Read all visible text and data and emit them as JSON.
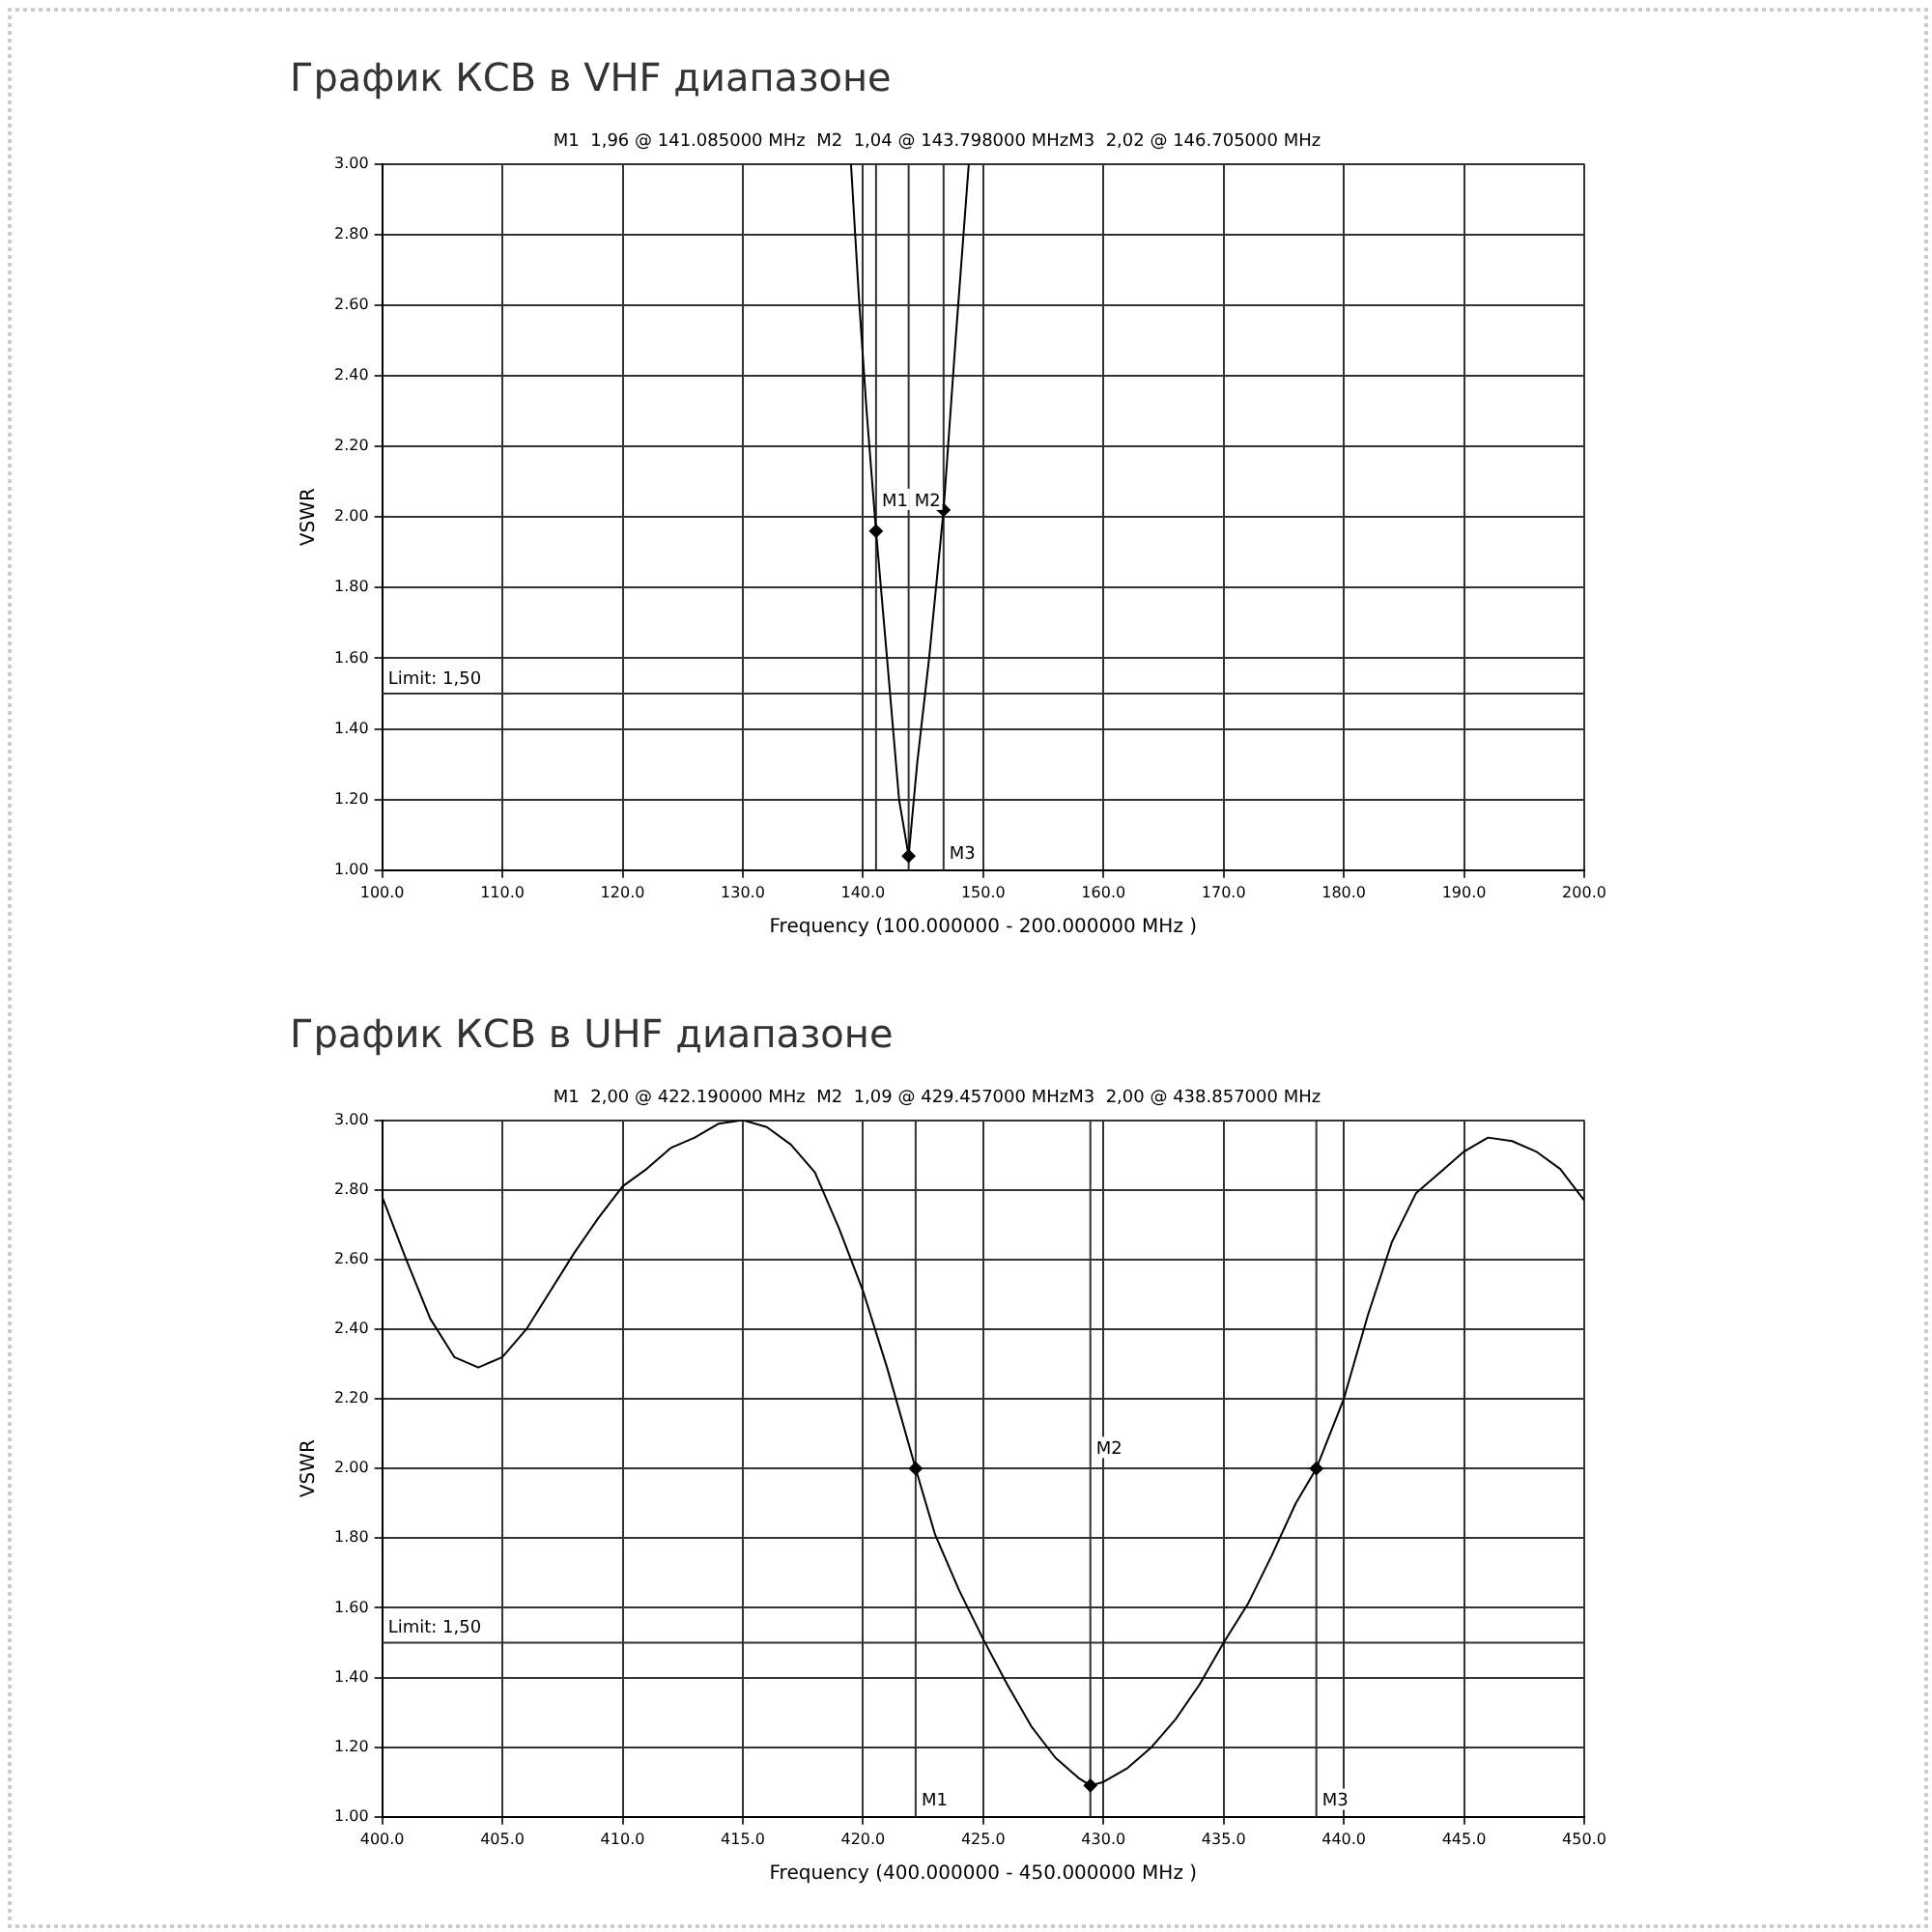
{
  "chart_data": [
    {
      "type": "line",
      "title": "График КСВ в VHF диапазоне",
      "subtitle": "M1  1,96 @ 141.085000 MHz  M2  1,04 @ 143.798000 MHzM3  2,02 @ 146.705000 MHz",
      "xlabel": "Frequency (100.000000 - 200.000000 MHz )",
      "ylabel": "VSWR",
      "xlim": [
        100,
        200
      ],
      "ylim": [
        1,
        3
      ],
      "xticks": [
        {
          "value": 100,
          "label": "100.0"
        },
        {
          "value": 110,
          "label": "110.0"
        },
        {
          "value": 120,
          "label": "120.0"
        },
        {
          "value": 130,
          "label": "130.0"
        },
        {
          "value": 140,
          "label": "140.0"
        },
        {
          "value": 150,
          "label": "150.0"
        },
        {
          "value": 160,
          "label": "160.0"
        },
        {
          "value": 170,
          "label": "170.0"
        },
        {
          "value": 180,
          "label": "180.0"
        },
        {
          "value": 190,
          "label": "190.0"
        },
        {
          "value": 200,
          "label": "200.0"
        }
      ],
      "yticks": [
        {
          "value": 1,
          "label": "1.00"
        },
        {
          "value": 1.2,
          "label": "1.20"
        },
        {
          "value": 1.4,
          "label": "1.40"
        },
        {
          "value": 1.6,
          "label": "1.60"
        },
        {
          "value": 1.8,
          "label": "1.80"
        },
        {
          "value": 2,
          "label": "2.00"
        },
        {
          "value": 2.2,
          "label": "2.20"
        },
        {
          "value": 2.4,
          "label": "2.40"
        },
        {
          "value": 2.6,
          "label": "2.60"
        },
        {
          "value": 2.8,
          "label": "2.80"
        },
        {
          "value": 3,
          "label": "3.00"
        }
      ],
      "grid": true,
      "legend": false,
      "series": [
        {
          "color": "#000000",
          "x": [
            139.0,
            139.7,
            140.3,
            141.085,
            142.0,
            143.0,
            143.798,
            144.5,
            145.5,
            146.705,
            147.7,
            148.8
          ],
          "values": [
            3.0,
            2.6,
            2.3,
            1.96,
            1.6,
            1.2,
            1.04,
            1.3,
            1.6,
            2.02,
            2.5,
            3.0
          ]
        },
        {
          "type": "scatter",
          "marker": "diamond",
          "color": "#000000",
          "x": [
            141.085,
            143.798,
            146.705
          ],
          "values": [
            1.96,
            1.04,
            2.02
          ]
        }
      ],
      "ref_lines": [
        {
          "axis": "x",
          "value": 141.085,
          "color": "#333333"
        },
        {
          "axis": "x",
          "value": 143.798,
          "color": "#333333"
        },
        {
          "axis": "x",
          "value": 146.705,
          "color": "#333333"
        },
        {
          "axis": "y",
          "value": 1.5,
          "label": "Limit: 1,50",
          "color": "#333333"
        }
      ],
      "annotations": [
        {
          "text": "M1",
          "x": 141.085,
          "y": 2.02
        },
        {
          "text": "M2",
          "x": 143.798,
          "y": 2.02
        },
        {
          "text": "M3",
          "x": 146.705,
          "y": 1.02
        }
      ]
    },
    {
      "type": "line",
      "title": "График КСВ в UHF диапазоне",
      "subtitle": "M1  2,00 @ 422.190000 MHz  M2  1,09 @ 429.457000 MHzM3  2,00 @ 438.857000 MHz",
      "xlabel": "Frequency (400.000000 - 450.000000 MHz )",
      "ylabel": "VSWR",
      "xlim": [
        400,
        450
      ],
      "ylim": [
        1,
        3
      ],
      "xticks": [
        {
          "value": 400,
          "label": "400.0"
        },
        {
          "value": 405,
          "label": "405.0"
        },
        {
          "value": 410,
          "label": "410.0"
        },
        {
          "value": 415,
          "label": "415.0"
        },
        {
          "value": 420,
          "label": "420.0"
        },
        {
          "value": 425,
          "label": "425.0"
        },
        {
          "value": 430,
          "label": "430.0"
        },
        {
          "value": 435,
          "label": "435.0"
        },
        {
          "value": 440,
          "label": "440.0"
        },
        {
          "value": 445,
          "label": "445.0"
        },
        {
          "value": 450,
          "label": "450.0"
        }
      ],
      "yticks": [
        {
          "value": 1,
          "label": "1.00"
        },
        {
          "value": 1.2,
          "label": "1.20"
        },
        {
          "value": 1.4,
          "label": "1.40"
        },
        {
          "value": 1.6,
          "label": "1.60"
        },
        {
          "value": 1.8,
          "label": "1.80"
        },
        {
          "value": 2,
          "label": "2.00"
        },
        {
          "value": 2.2,
          "label": "2.20"
        },
        {
          "value": 2.4,
          "label": "2.40"
        },
        {
          "value": 2.6,
          "label": "2.60"
        },
        {
          "value": 2.8,
          "label": "2.80"
        },
        {
          "value": 3,
          "label": "3.00"
        }
      ],
      "grid": true,
      "legend": false,
      "series": [
        {
          "color": "#000000",
          "x": [
            400,
            401,
            402,
            403,
            404,
            405,
            406,
            407,
            408,
            409,
            410,
            411,
            412,
            413,
            414,
            415,
            416,
            417,
            418,
            419,
            420,
            421,
            422.19,
            423,
            424,
            425,
            426,
            427,
            428,
            429,
            429.457,
            430,
            431,
            432,
            433,
            434,
            435,
            436,
            437,
            438,
            438.857,
            440,
            441,
            442,
            443,
            444,
            445,
            446,
            447,
            448,
            449,
            450
          ],
          "values": [
            2.78,
            2.6,
            2.43,
            2.32,
            2.29,
            2.32,
            2.4,
            2.51,
            2.62,
            2.72,
            2.81,
            2.86,
            2.92,
            2.95,
            2.99,
            3.0,
            2.98,
            2.93,
            2.85,
            2.69,
            2.51,
            2.29,
            2.0,
            1.81,
            1.65,
            1.51,
            1.38,
            1.26,
            1.17,
            1.11,
            1.09,
            1.1,
            1.14,
            1.2,
            1.28,
            1.38,
            1.5,
            1.61,
            1.75,
            1.9,
            2.0,
            2.2,
            2.44,
            2.65,
            2.79,
            2.85,
            2.91,
            2.95,
            2.94,
            2.91,
            2.86,
            2.77
          ]
        },
        {
          "type": "scatter",
          "marker": "diamond",
          "color": "#000000",
          "x": [
            422.19,
            429.457,
            438.857
          ],
          "values": [
            2.0,
            1.09,
            2.0
          ]
        }
      ],
      "ref_lines": [
        {
          "axis": "x",
          "value": 422.19,
          "color": "#333333"
        },
        {
          "axis": "x",
          "value": 429.457,
          "color": "#333333"
        },
        {
          "axis": "x",
          "value": 438.857,
          "color": "#333333"
        },
        {
          "axis": "y",
          "value": 1.5,
          "label": "Limit: 1,50",
          "color": "#333333"
        }
      ],
      "annotations": [
        {
          "text": "M1",
          "x": 422.19,
          "y": 1.02
        },
        {
          "text": "M2",
          "x": 429.457,
          "y": 2.03
        },
        {
          "text": "M3",
          "x": 438.857,
          "y": 1.02
        }
      ]
    }
  ]
}
